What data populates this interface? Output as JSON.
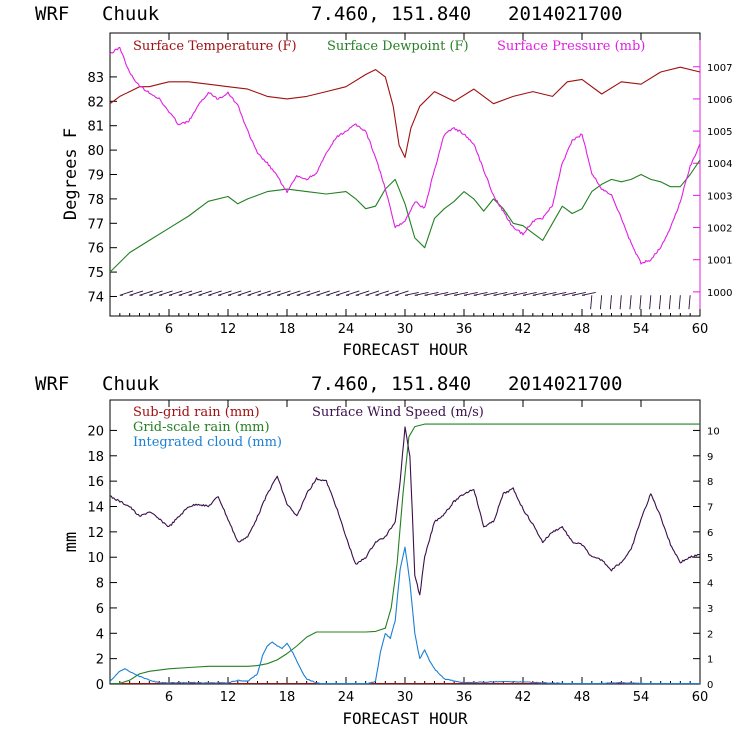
{
  "charts": [
    {
      "model": "WRF",
      "station": "Chuuk",
      "coords": "7.460, 151.840",
      "run": "2014021700"
    },
    {
      "model": "WRF",
      "station": "Chuuk",
      "coords": "7.460, 151.840",
      "run": "2014021700"
    }
  ],
  "chart_data": [
    {
      "type": "line",
      "xlabel": "FORECAST HOUR",
      "ylabel": "Degrees F",
      "xlim": [
        0,
        60
      ],
      "x_ticks": [
        6,
        12,
        18,
        24,
        30,
        36,
        42,
        48,
        54,
        60
      ],
      "ylim": [
        73.2,
        84.8
      ],
      "y_ticks": [
        74,
        75,
        76,
        77,
        78,
        79,
        80,
        81,
        82,
        83
      ],
      "y2lim": [
        999.25,
        1008.05
      ],
      "y2_ticks": [
        1000,
        1001,
        1002,
        1003,
        1004,
        1005,
        1006,
        1007
      ],
      "grid": false,
      "legend_position": "top",
      "series": [
        {
          "name": "Surface Temperature (F)",
          "color": "#a01010",
          "axis": "left",
          "x": [
            0,
            1,
            2,
            3,
            4,
            5,
            6,
            8,
            10,
            12,
            14,
            16,
            18,
            20,
            22,
            24,
            26,
            27,
            28,
            28.8,
            29.4,
            30,
            30.6,
            31.5,
            33,
            35,
            37,
            39,
            41,
            43,
            45,
            46.5,
            48,
            50,
            52,
            54,
            56,
            58,
            60
          ],
          "y": [
            81.9,
            82.2,
            82.4,
            82.6,
            82.6,
            82.7,
            82.8,
            82.8,
            82.7,
            82.6,
            82.5,
            82.2,
            82.1,
            82.2,
            82.4,
            82.6,
            83.1,
            83.3,
            83.0,
            81.8,
            80.2,
            79.7,
            80.9,
            81.8,
            82.4,
            82.0,
            82.5,
            81.9,
            82.2,
            82.4,
            82.2,
            82.8,
            82.9,
            82.3,
            82.8,
            82.7,
            83.2,
            83.4,
            83.2
          ]
        },
        {
          "name": "Surface Dewpoint (F)",
          "color": "#238023",
          "axis": "left",
          "x": [
            0,
            2,
            4,
            6,
            8,
            10,
            12,
            13,
            14,
            16,
            18,
            20,
            22,
            24,
            25,
            26,
            27,
            28,
            29,
            30,
            31,
            32,
            33,
            34,
            35,
            36,
            37,
            38,
            39,
            40,
            41,
            42,
            43,
            44,
            45,
            46,
            47,
            48,
            49,
            50,
            51,
            52,
            53,
            54,
            55,
            56,
            57,
            58,
            59,
            60
          ],
          "y": [
            75.0,
            75.8,
            76.3,
            76.8,
            77.3,
            77.9,
            78.1,
            77.8,
            78.0,
            78.3,
            78.4,
            78.3,
            78.2,
            78.3,
            78.0,
            77.6,
            77.7,
            78.4,
            78.8,
            77.8,
            76.4,
            76.0,
            77.2,
            77.6,
            77.9,
            78.3,
            78.0,
            77.5,
            78.0,
            77.6,
            77.0,
            76.9,
            76.6,
            76.3,
            77.0,
            77.7,
            77.4,
            77.6,
            78.3,
            78.6,
            78.8,
            78.7,
            78.8,
            79.0,
            78.8,
            78.7,
            78.5,
            78.5,
            79.0,
            79.6
          ]
        },
        {
          "name": "Surface Pressure (mb)",
          "color": "#e020e0",
          "axis": "right",
          "x": [
            0,
            1,
            2,
            3,
            4,
            5,
            6,
            7,
            8,
            9,
            10,
            11,
            12,
            13,
            14,
            15,
            16,
            17,
            18,
            19,
            20,
            21,
            22,
            23,
            24,
            25,
            26,
            27,
            28,
            29,
            30,
            31,
            32,
            33,
            34,
            35,
            36,
            37,
            38,
            39,
            40,
            41,
            42,
            43,
            44,
            45,
            46,
            47,
            48,
            49,
            50,
            51,
            52,
            53,
            54,
            55,
            56,
            57,
            58,
            59,
            60
          ],
          "y": [
            1007.4,
            1007.6,
            1006.8,
            1006.4,
            1006.2,
            1006.0,
            1005.6,
            1005.2,
            1005.3,
            1005.8,
            1006.2,
            1006.0,
            1006.2,
            1005.8,
            1005.0,
            1004.3,
            1004.0,
            1003.6,
            1003.1,
            1003.6,
            1003.5,
            1003.7,
            1004.3,
            1004.8,
            1005.0,
            1005.2,
            1005.0,
            1004.2,
            1003.2,
            1002.0,
            1002.2,
            1002.8,
            1002.6,
            1003.8,
            1004.9,
            1005.1,
            1004.9,
            1004.6,
            1003.8,
            1003.0,
            1002.5,
            1002.0,
            1001.8,
            1002.2,
            1002.3,
            1002.7,
            1004.0,
            1004.7,
            1004.9,
            1003.7,
            1003.2,
            1003.0,
            1002.3,
            1001.5,
            1000.9,
            1001.0,
            1001.4,
            1002.0,
            1002.8,
            1003.9,
            1004.6
          ]
        }
      ]
    },
    {
      "type": "line",
      "xlabel": "FORECAST HOUR",
      "ylabel": "mm",
      "xlim": [
        0,
        60
      ],
      "x_ticks": [
        6,
        12,
        18,
        24,
        30,
        36,
        42,
        48,
        54,
        60
      ],
      "ylim": [
        0,
        22.4
      ],
      "y_ticks": [
        0,
        2,
        4,
        6,
        8,
        10,
        12,
        14,
        16,
        18,
        20
      ],
      "y2lim": [
        0,
        11.2
      ],
      "y2_ticks": [
        0,
        1,
        2,
        3,
        4,
        5,
        6,
        7,
        8,
        9,
        10
      ],
      "grid": false,
      "legend_position": "top",
      "series": [
        {
          "name": "Sub-grid rain (mm)",
          "color": "#a01010",
          "axis": "left",
          "x": [
            0,
            60
          ],
          "y": [
            0,
            0
          ]
        },
        {
          "name": "Grid-scale rain (mm)",
          "color": "#238023",
          "axis": "left",
          "x": [
            0,
            1,
            2,
            3,
            4,
            6,
            8,
            10,
            12,
            14,
            15,
            16,
            17,
            18,
            19,
            20,
            21,
            22,
            24,
            26,
            27,
            28,
            28.6,
            29.2,
            29.8,
            30.4,
            31,
            32,
            36,
            40,
            44,
            48,
            52,
            56,
            60
          ],
          "y": [
            0,
            0.05,
            0.3,
            0.8,
            1.0,
            1.2,
            1.3,
            1.4,
            1.4,
            1.4,
            1.45,
            1.6,
            1.9,
            2.4,
            3.0,
            3.7,
            4.1,
            4.1,
            4.1,
            4.1,
            4.15,
            4.4,
            6.0,
            9.5,
            15.0,
            19.5,
            20.3,
            20.5,
            20.5,
            20.5,
            20.5,
            20.5,
            20.5,
            20.5,
            20.5
          ]
        },
        {
          "name": "Integrated cloud (mm)",
          "color": "#1a7fd6",
          "axis": "left",
          "x": [
            0,
            0.5,
            1,
            1.5,
            2,
            3,
            4,
            5,
            6,
            8,
            10,
            12,
            13,
            14,
            15,
            15.5,
            16,
            16.5,
            17,
            17.5,
            18,
            18.5,
            19,
            19.5,
            20,
            21,
            22,
            24,
            26,
            27,
            27.5,
            28,
            28.5,
            29,
            29.5,
            30,
            30.5,
            31,
            31.5,
            32,
            32.5,
            33,
            34,
            36,
            40,
            44,
            48,
            52,
            56,
            60
          ],
          "y": [
            0.2,
            0.6,
            1.0,
            1.2,
            1.0,
            0.6,
            0.3,
            0.1,
            0.1,
            0.1,
            0.1,
            0.1,
            0.3,
            0.2,
            0.8,
            2.2,
            3.0,
            3.3,
            3.0,
            2.8,
            3.2,
            2.6,
            1.8,
            1.0,
            0.4,
            0.1,
            0.0,
            0.0,
            0.0,
            0.2,
            2.5,
            4.0,
            3.6,
            5.0,
            9.0,
            10.8,
            8.0,
            4.0,
            2.0,
            2.7,
            1.8,
            1.2,
            0.4,
            0.1,
            0.2,
            0.1,
            0.0,
            0.1,
            0.0,
            0.0
          ]
        },
        {
          "name": "Surface Wind Speed (m/s)",
          "color": "#3a0f4a",
          "axis": "right",
          "x": [
            0,
            1,
            2,
            3,
            4,
            5,
            6,
            7,
            8,
            9,
            10,
            11,
            12,
            13,
            14,
            15,
            16,
            17,
            18,
            19,
            20,
            21,
            22,
            23,
            24,
            25,
            26,
            27,
            28,
            29,
            29.5,
            30,
            30.5,
            31,
            31.5,
            32,
            33,
            34,
            35,
            36,
            37,
            38,
            39,
            40,
            41,
            42,
            43,
            44,
            45,
            46,
            47,
            48,
            49,
            50,
            51,
            52,
            53,
            54,
            55,
            56,
            57,
            58,
            59,
            60
          ],
          "y": [
            7.4,
            7.2,
            7.0,
            6.6,
            6.8,
            6.5,
            6.2,
            6.6,
            7.0,
            7.1,
            7.0,
            7.4,
            6.5,
            5.6,
            5.8,
            6.6,
            7.5,
            8.2,
            7.1,
            6.6,
            7.5,
            8.1,
            8.0,
            7.0,
            5.8,
            4.7,
            5.0,
            5.6,
            5.8,
            6.4,
            8.0,
            10.1,
            9.0,
            4.3,
            3.5,
            5.0,
            6.4,
            6.7,
            7.2,
            7.5,
            7.7,
            6.2,
            6.4,
            7.5,
            7.7,
            6.9,
            6.3,
            5.6,
            6.0,
            6.2,
            5.6,
            5.5,
            5.0,
            4.9,
            4.5,
            4.8,
            5.3,
            6.5,
            7.5,
            6.6,
            5.5,
            4.8,
            5.0,
            5.1
          ]
        }
      ]
    }
  ]
}
